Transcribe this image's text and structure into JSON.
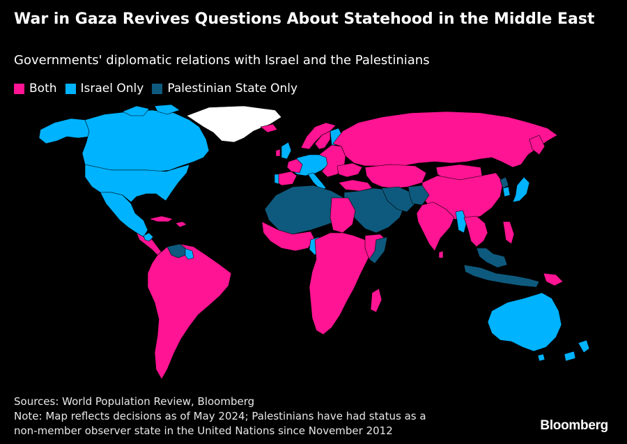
{
  "header": {
    "title": "War in Gaza Revives Questions About Statehood in the Middle East",
    "subtitle": "Governments' diplomatic relations with Israel and the Palestinians"
  },
  "legend": [
    {
      "label": "Both",
      "color": "#ff1493"
    },
    {
      "label": "Israel Only",
      "color": "#00b3ff"
    },
    {
      "label": "Palestinian State Only",
      "color": "#0e5a7e"
    }
  ],
  "colors": {
    "both": "#ff1493",
    "israel_only": "#00b3ff",
    "palestinian_only": "#0e5a7e",
    "no_data": "#ffffff",
    "background": "#000000"
  },
  "footer": {
    "sources": "Sources: World Population Review, Bloomberg",
    "note_line1": "Note: Map reflects decisions as of May 2024; Palestinians have had status as a",
    "note_line2": "non-member observer state in the United Nations since November 2012",
    "brand": "Bloomberg"
  }
}
